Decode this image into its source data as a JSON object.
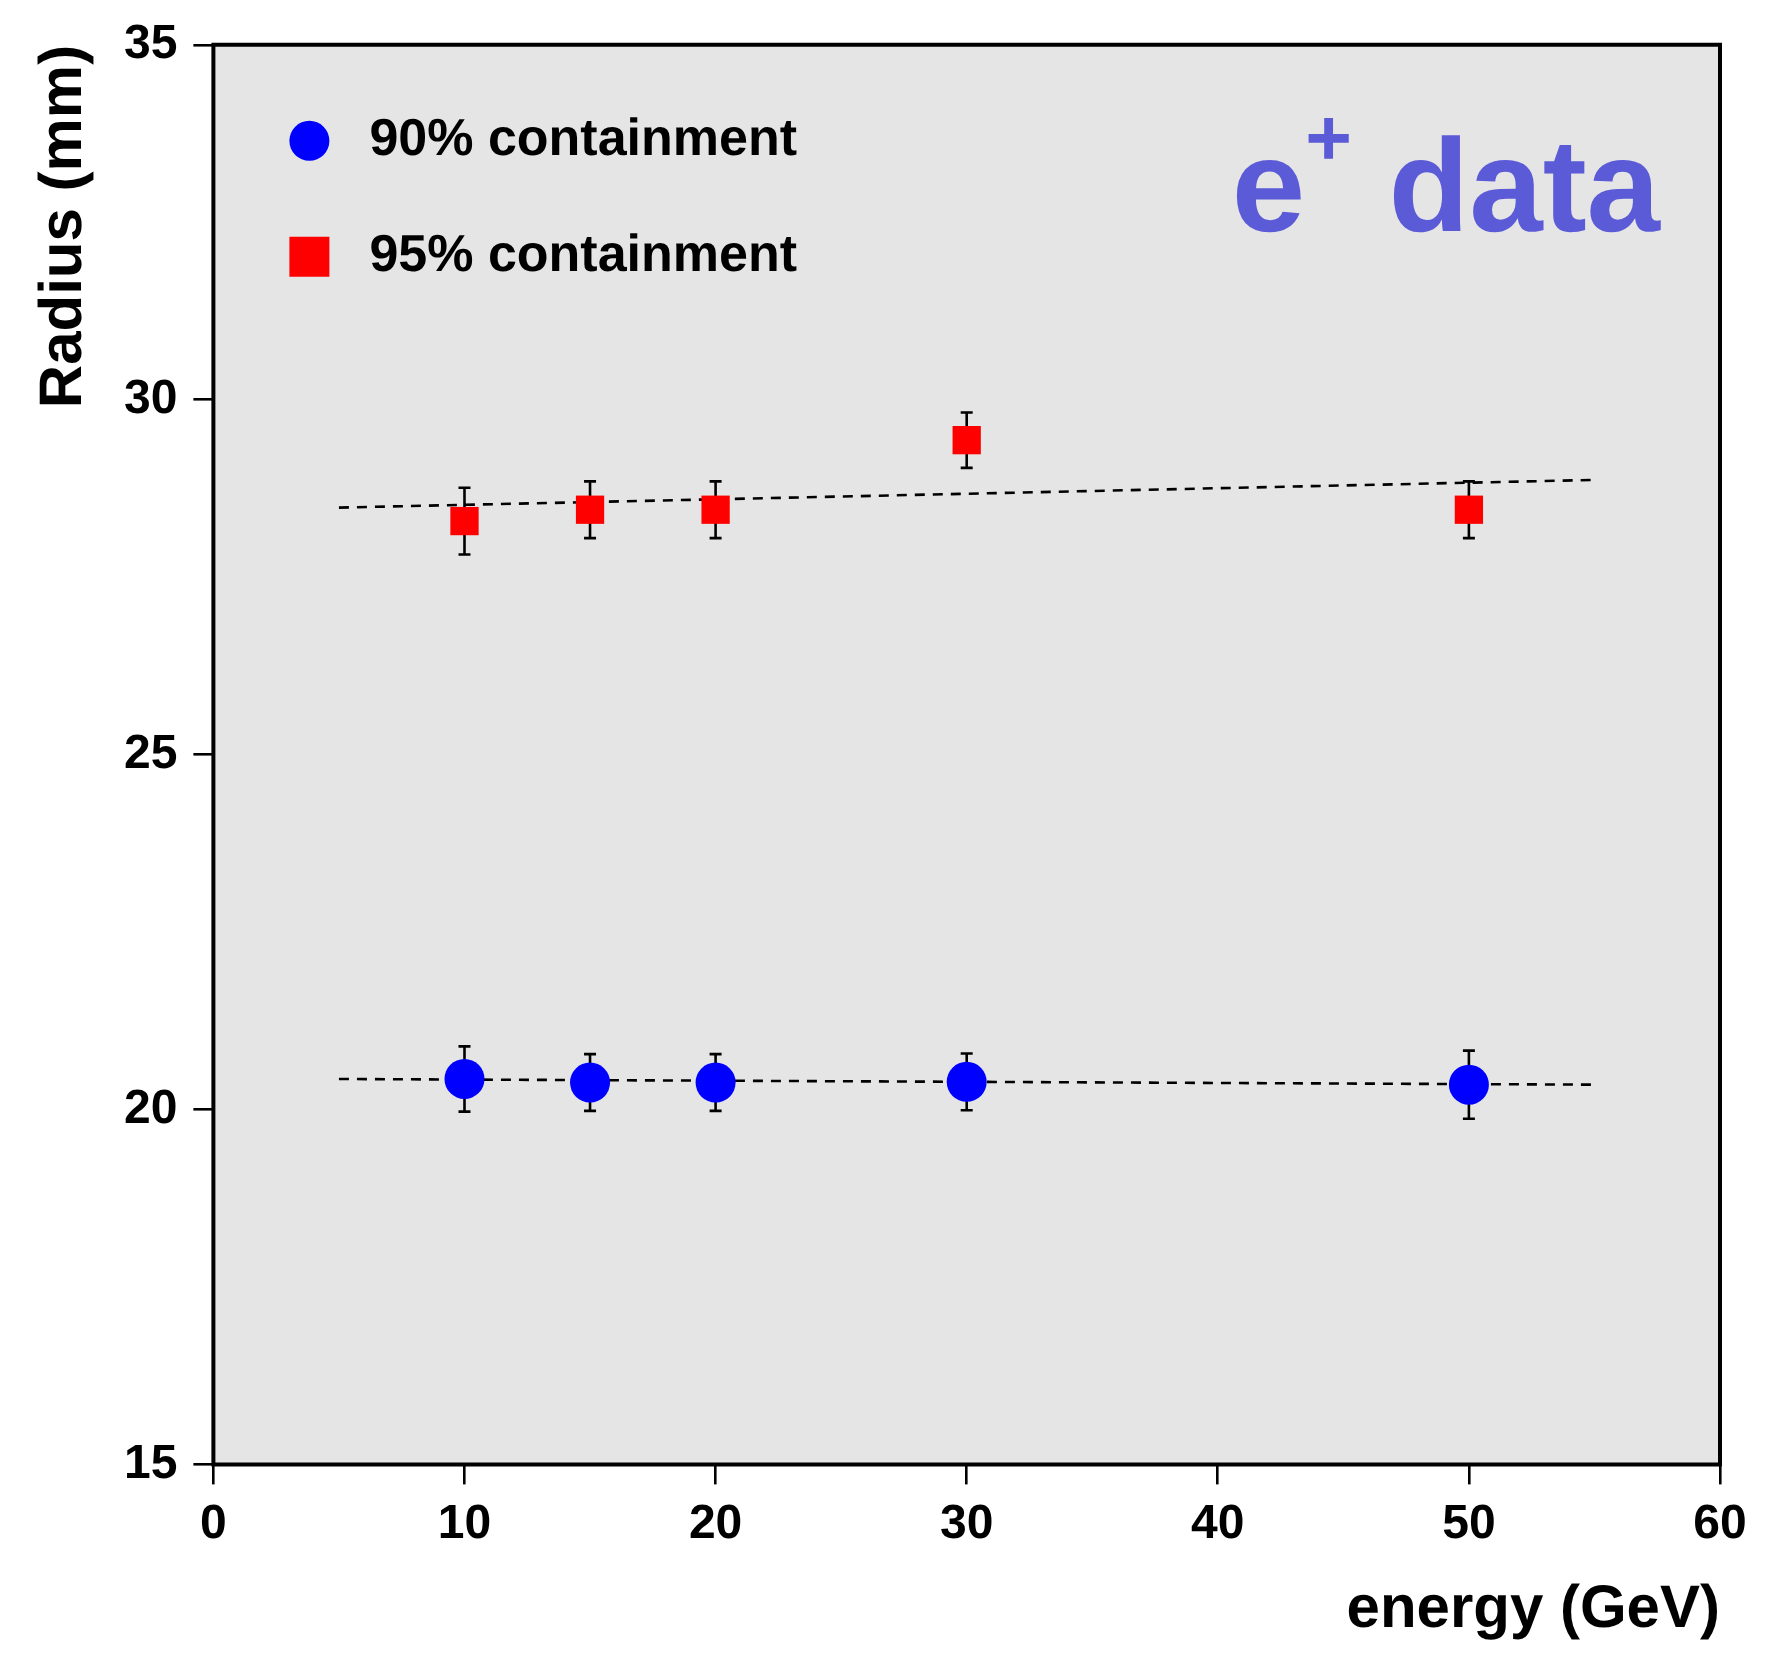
{
  "chart_data": {
    "type": "scatter",
    "xlabel": "energy (GeV)",
    "ylabel": "Radius (mm)",
    "xlim": [
      0,
      60
    ],
    "xticks": [
      0,
      10,
      20,
      30,
      40,
      50,
      60
    ],
    "ylim": [
      15,
      35
    ],
    "yticks": [
      15,
      20,
      25,
      30,
      35
    ],
    "grid": false,
    "legend": "top left",
    "annotations": [
      "e$^{+}$ data"
    ],
    "series": [
      {
        "name": "90% containment",
        "color": "#0000ff",
        "marker": "circle",
        "x": [
          10,
          15,
          20,
          30,
          50
        ],
        "values": [
          20.43,
          20.38,
          20.38,
          20.39,
          20.35
        ],
        "errors": [
          0.46,
          0.4,
          0.4,
          0.4,
          0.48
        ]
      },
      {
        "name": "95% containment",
        "color": "#ff0000",
        "marker": "square",
        "x": [
          10,
          15,
          20,
          30,
          50
        ],
        "values": [
          28.29,
          28.45,
          28.45,
          29.43,
          28.45
        ],
        "errors": [
          0.47,
          0.4,
          0.4,
          0.39,
          0.4
        ]
      },
      {
        "type": "line",
        "color": "#000000",
        "line_style": "dashed",
        "marker": "none",
        "x": [
          5,
          55
        ],
        "values": [
          20.43,
          20.35
        ]
      },
      {
        "type": "line",
        "color": "#000000",
        "line_style": "dashed",
        "marker": "none",
        "x": [
          5,
          55
        ],
        "values": [
          28.48,
          28.87
        ]
      }
    ]
  }
}
